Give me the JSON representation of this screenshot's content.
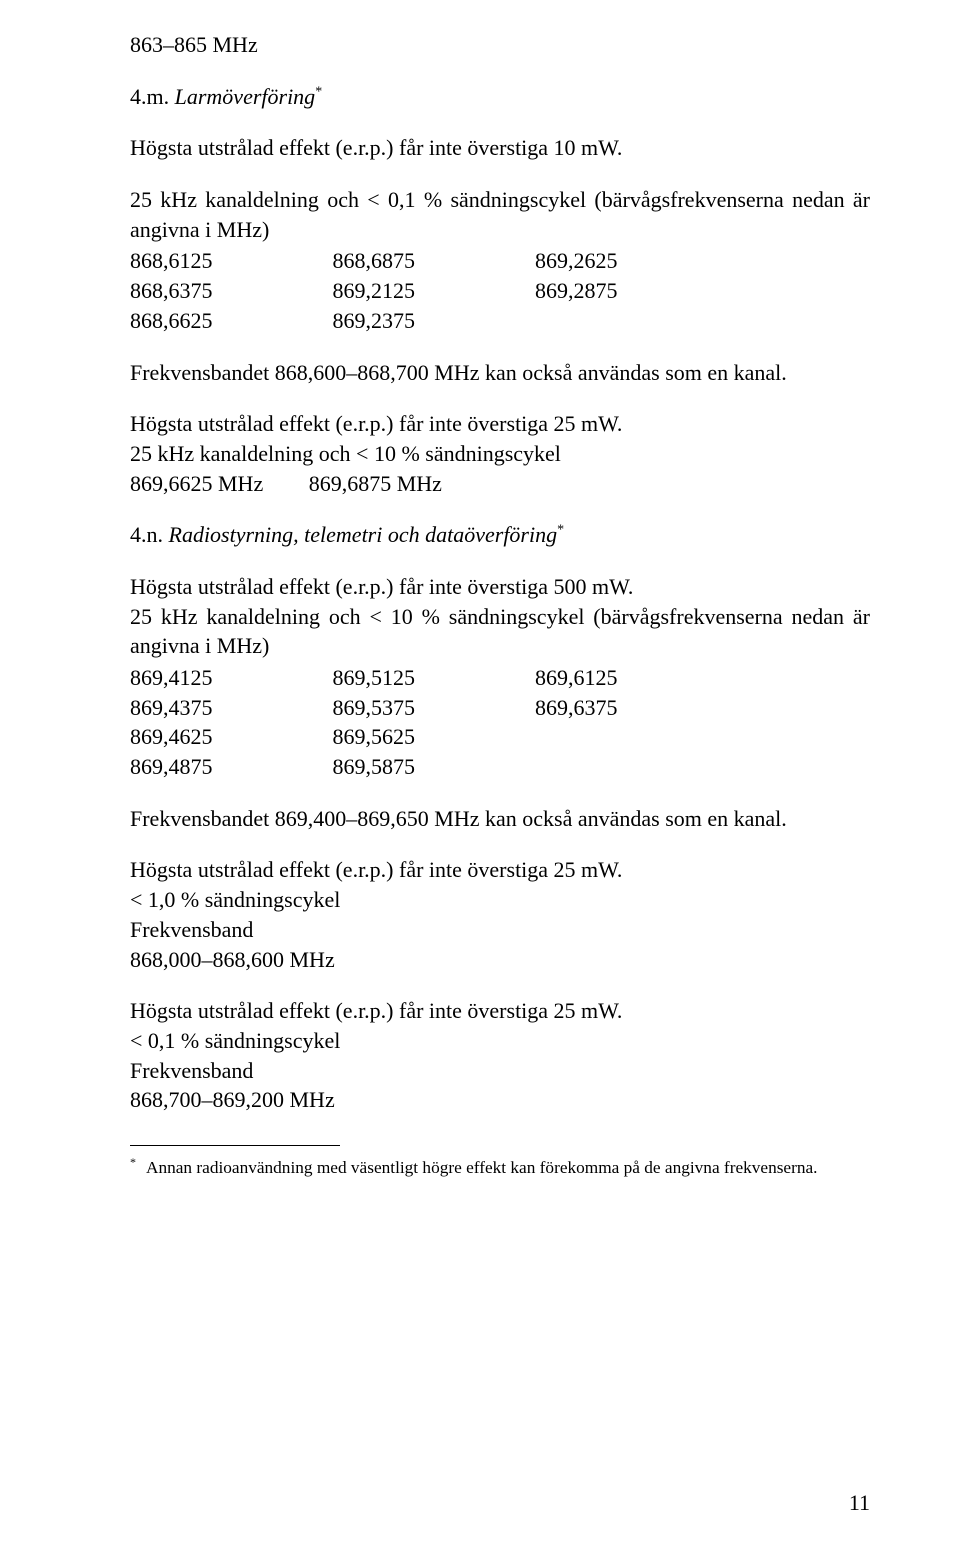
{
  "freq_range_header": "863–865 MHz",
  "sec_4m": {
    "num": "4.m.",
    "title": "Larmöverföring",
    "asterisk": "*"
  },
  "erp_10": "Högsta utstrålad effekt (e.r.p.) får inte överstiga 10 mW.",
  "block1": {
    "intro": "25 kHz kanaldelning och < 0,1 % sändningscykel (bärvågsfrekvenserna nedan är angivna i MHz)",
    "col1": [
      "868,6125",
      "868,6375",
      "868,6625"
    ],
    "col2": [
      "868,6875"
    ],
    "col3": [
      "869,2625",
      "869,2125",
      "869,2375"
    ],
    "col2_b": "869,2875"
  },
  "block1_corrected": {
    "c1": [
      "868,6125",
      "868,6375",
      "868,6625"
    ],
    "c2": [
      "868,6875",
      "869,2125",
      "869,2375"
    ],
    "c3": [
      "869,2625",
      "869,2875"
    ]
  },
  "band1_text": "Frekvensbandet 868,600–868,700 MHz kan också användas som en kanal.",
  "erp_25_a": "Högsta utstrålad effekt (e.r.p.) får inte överstiga 25 mW.",
  "block2": {
    "intro": "25 kHz kanaldelning och < 10 % sändningscykel",
    "v1": "869,6625 MHz",
    "v2": "869,6875 MHz"
  },
  "sec_4n": {
    "num": "4.n.",
    "title": "Radiostyrning, telemetri och dataöverföring",
    "asterisk": "*"
  },
  "erp_500": "Högsta utstrålad effekt (e.r.p.) får inte överstiga 500 mW.",
  "block3": {
    "intro": "25 kHz kanaldelning och < 10 % sändningscykel (bärvågsfrekvenserna nedan är angivna i MHz)",
    "c1": [
      "869,4125",
      "869,4375",
      "869,4625",
      "869,4875"
    ],
    "c2": [
      "869,5125",
      "869,5375",
      "869,5625",
      "869,5875"
    ],
    "c3": [
      "869,6125",
      "869,6375"
    ]
  },
  "band2_text": "Frekvensbandet 869,400–869,650 MHz kan också användas som en kanal.",
  "block4": {
    "erp": "Högsta utstrålad effekt (e.r.p.) får inte överstiga 25 mW.",
    "duty": "< 1,0 % sändningscykel",
    "label": "Frekvensband",
    "band": "868,000–868,600 MHz"
  },
  "block5": {
    "erp": "Högsta utstrålad effekt (e.r.p.) får inte överstiga 25 mW.",
    "duty": "< 0,1 % sändningscykel",
    "label": "Frekvensband",
    "band": "868,700–869,200 MHz"
  },
  "footnote": {
    "marker": "*",
    "text": "Annan radioanvändning med väsentligt högre effekt kan förekomma på de angivna frekvenserna."
  },
  "page_number": "11"
}
